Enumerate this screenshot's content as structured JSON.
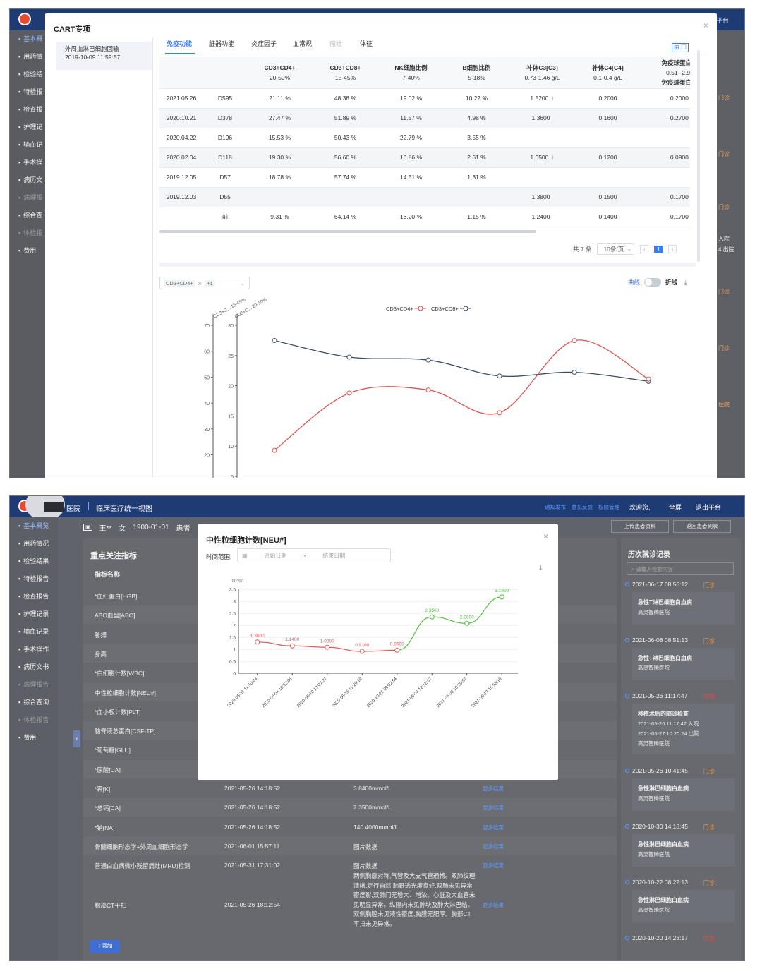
{
  "s1": {
    "topbar": {
      "right": "出平台"
    },
    "sidebar": [
      {
        "label": "基本概"
      },
      {
        "label": "用药情"
      },
      {
        "label": "检验结"
      },
      {
        "label": "特检报"
      },
      {
        "label": "检查报"
      },
      {
        "label": "护理记"
      },
      {
        "label": "输血记"
      },
      {
        "label": "手术操"
      },
      {
        "label": "病历文"
      },
      {
        "label": "病理报"
      },
      {
        "label": "综合查"
      },
      {
        "label": "体检报"
      },
      {
        "label": "费用"
      }
    ],
    "modal": {
      "title": "CART专项",
      "record_name": "外周血淋巴细胞回输",
      "record_time": "2019-10-09 11:59:57",
      "tabs": [
        "免疫功能",
        "脏器功能",
        "炎症因子",
        "血常规",
        "瘤灶",
        "体征"
      ],
      "columns": [
        {
          "name": "",
          "range": ""
        },
        {
          "name": "",
          "range": ""
        },
        {
          "name": "CD3+CD4+",
          "range": "20-50%"
        },
        {
          "name": "CD3+CD8+",
          "range": "15-45%"
        },
        {
          "name": "NK细胞比例",
          "range": "7-40%"
        },
        {
          "name": "B细胞比例",
          "range": "5-18%"
        },
        {
          "name": "补体C3[C3]",
          "range": "0.73-1.46 g/L"
        },
        {
          "name": "补体C4[C4]",
          "range": "0.1-0.4 g/L"
        },
        {
          "name": "免疫球蛋白IgA[",
          "range": "0.51--2.97 g"
        }
      ],
      "header_extra": "免疫球蛋白IgA[",
      "rows": [
        {
          "date": "2021.05.26",
          "day": "D595",
          "cd4": "21.11 %",
          "cd8": "48.38 %",
          "nk": "19.02 %",
          "b": "10.22 %",
          "c3": "1.5200",
          "c3_flag": "↑",
          "c4": "0.2000",
          "iga": "0.2000",
          "iga_flag": "↓"
        },
        {
          "date": "2020.10.21",
          "day": "D378",
          "cd4": "27.47 %",
          "cd8": "51.89 %",
          "nk": "11.57 %",
          "b": "4.98 %",
          "c3": "1.3600",
          "c3_flag": "",
          "c4": "0.1600",
          "iga": "0.2700",
          "iga_flag": "↓"
        },
        {
          "date": "2020.04.22",
          "day": "D196",
          "cd4": "15.53 %",
          "cd8": "50.43 %",
          "nk": "22.79 %",
          "b": "3.55 %",
          "c3": "",
          "c3_flag": "",
          "c4": "",
          "iga": "",
          "iga_flag": ""
        },
        {
          "date": "2020.02.04",
          "day": "D118",
          "cd4": "19.30 %",
          "cd8": "56.60 %",
          "nk": "16.86 %",
          "b": "2.61 %",
          "c3": "1.6500",
          "c3_flag": "↑",
          "c4": "0.1200",
          "iga": "0.0900",
          "iga_flag": "↓"
        },
        {
          "date": "2019.12.05",
          "day": "D57",
          "cd4": "18.78 %",
          "cd8": "57.74 %",
          "nk": "14.51 %",
          "b": "1.31 %",
          "c3": "",
          "c3_flag": "",
          "c4": "",
          "iga": "",
          "iga_flag": ""
        },
        {
          "date": "2019.12.03",
          "day": "D55",
          "cd4": "",
          "cd8": "",
          "nk": "",
          "b": "",
          "c3": "1.3800",
          "c3_flag": "",
          "c4": "0.1500",
          "iga": "0.1700",
          "iga_flag": "↓"
        },
        {
          "date": "",
          "day": "前",
          "cd4": "9.31 %",
          "cd8": "64.14 %",
          "nk": "18.20 %",
          "b": "1.15 %",
          "c3": "1.2400",
          "c3_flag": "",
          "c4": "0.1400",
          "iga": "0.1700",
          "iga_flag": "↓"
        }
      ],
      "pagination": {
        "total": "共 7 条",
        "page_size": "10条/页",
        "current": "1"
      },
      "chart_select": {
        "value": "CD3+CD4+",
        "extra": "+1"
      },
      "toggle_left": "曲线",
      "toggle_right": "折线",
      "right_edge": [
        "门诊",
        "门诊",
        "门诊",
        "入院",
        "4 出院",
        "门诊",
        "门诊",
        "住院"
      ]
    },
    "chart_data": {
      "type": "line",
      "legend": [
        "CD3+CD4+",
        "CD3+CD8+"
      ],
      "y_left_label": "CD3+C... 15-45%",
      "y_right_label": "CD3+C... 20-50%",
      "y_outer_ticks": [
        "70",
        "60",
        "50",
        "40",
        "30",
        "20",
        "10"
      ],
      "y_inner_ticks": [
        "30",
        "25",
        "20",
        "15",
        "10",
        "5"
      ],
      "series": [
        {
          "name": "CD3+CD4+",
          "color": "#d9534f",
          "values": [
            9.31,
            18.78,
            19.3,
            15.53,
            27.47,
            21.11
          ]
        },
        {
          "name": "CD3+CD8+",
          "color": "#3c4b64",
          "values": [
            64.14,
            57.74,
            56.6,
            50.43,
            51.89,
            48.38
          ]
        }
      ]
    }
  },
  "s2": {
    "topbar": {
      "hospital": "医院",
      "system": "临床医疗统一视图",
      "links": [
        "通知发布",
        "意见反馈",
        "权限管理"
      ],
      "welcome": "欢迎您,",
      "fullscreen": "全屏",
      "exit": "退出平台"
    },
    "patient": {
      "name": "王**",
      "sex": "女",
      "birth": "1900-01-01",
      "label": "患者"
    },
    "actions": {
      "upload": "上传患者资料",
      "back": "返回患者列表"
    },
    "sidebar": [
      {
        "label": "基本概览"
      },
      {
        "label": "用药情况"
      },
      {
        "label": "检验结果"
      },
      {
        "label": "特检报告"
      },
      {
        "label": "检查报告"
      },
      {
        "label": "护理记录"
      },
      {
        "label": "输血记录"
      },
      {
        "label": "手术操作"
      },
      {
        "label": "病历文书"
      },
      {
        "label": "病理报告"
      },
      {
        "label": "综合查询"
      },
      {
        "label": "体检报告"
      },
      {
        "label": "费用"
      }
    ],
    "focus": {
      "title": "重点关注指标",
      "col_name": "指标名称",
      "items": [
        {
          "name": "*血红蛋白[HGB]",
          "time": "",
          "value": "",
          "more": ""
        },
        {
          "name": "ABO血型[ABO]",
          "time": "",
          "value": "",
          "more": ""
        },
        {
          "name": "脉搏",
          "time": "",
          "value": "",
          "more": ""
        },
        {
          "name": "身高",
          "time": "",
          "value": "",
          "more": ""
        },
        {
          "name": "*白细胞计数[WBC]",
          "time": "",
          "value": "",
          "more": ""
        },
        {
          "name": "中性粒细胞计数[NEU#]",
          "time": "",
          "value": "",
          "more": ""
        },
        {
          "name": "*血小板计数[PLT]",
          "time": "",
          "value": "",
          "more": ""
        },
        {
          "name": "脑脊液总蛋白[CSF-TP]",
          "time": "",
          "value": "",
          "more": ""
        },
        {
          "name": "*葡萄糖[GLU]",
          "time": "",
          "value": "",
          "more": ""
        },
        {
          "name": "*尿酸[UA]",
          "time": "",
          "value": "",
          "more": ""
        },
        {
          "name": "*钾[K]",
          "time": "2021-05-26 14:18:52",
          "value": "3.8400mmol/L",
          "more": "更多结果"
        },
        {
          "name": "*总钙[CA]",
          "time": "2021-05-26 14:18:52",
          "value": "2.3500mmol/L",
          "more": "更多结果"
        },
        {
          "name": "*钠[NA]",
          "time": "2021-05-26 14:18:52",
          "value": "140.4000mmol/L",
          "more": "更多结果"
        },
        {
          "name": "骨髓细胞形态学+外周血细胞形态学",
          "time": "2021-06-01 15:57:11",
          "value": "图片数据",
          "more": "更多结果"
        },
        {
          "name": "普通白血病微小残留病灶(MRD)检测",
          "time": "2021-05-31 17:31:02",
          "value": "图片数据",
          "more": "更多结果"
        }
      ],
      "ct": {
        "name": "胸部CT平扫",
        "time": "2021-05-26 18:12:54",
        "value": "两侧胸廓对称,气管及大支气管通畅。双肺纹理清晰,走行自然,肺野透光度良好,双肺未见异常密度影,双肺门无增大、增浓。心脏及大血管未见明显异常。纵隔内未见肿块及肿大淋巴结。双侧胸腔未见液性密度,胸膜无肥厚。胸部CT平扫未见异常。",
        "more": "更多结果"
      },
      "add": "+添加"
    },
    "history": {
      "title": "历次就诊记录",
      "search_placeholder": "请输入检索内容",
      "records": [
        {
          "time": "2021-06-17 08:56:12",
          "type": "门诊",
          "red": false,
          "diag": "急性T淋巴细胞白血病",
          "hosp": "高灵智腾医院"
        },
        {
          "time": "2021-06-08 08:51:13",
          "type": "门诊",
          "red": false,
          "diag": "急性T淋巴细胞白血病",
          "hosp": "高灵智腾医院"
        },
        {
          "time": "2021-05-26 11:17:47",
          "type": "住院",
          "red": true,
          "diag": "移植术后的随诊检查",
          "hosp": "高灵智腾医院",
          "in": "2021-05-26 11:17:47 入院",
          "out": "2021-05-27 10:20:24 出院"
        },
        {
          "time": "2021-05-26 10:41:45",
          "type": "门诊",
          "red": false,
          "diag": "急性淋巴细胞白血病",
          "hosp": "高灵智腾医院"
        },
        {
          "time": "2020-10-30 14:18:45",
          "type": "门诊",
          "red": false,
          "diag": "急性淋巴细胞白血病",
          "hosp": "高灵智腾医院"
        },
        {
          "time": "2020-10-22 08:22:13",
          "type": "门诊",
          "red": false,
          "diag": "急性淋巴细胞白血病",
          "hosp": "高灵智腾医院"
        },
        {
          "time": "2020-10-20 14:23:17",
          "type": "住院",
          "red": true,
          "diag": "",
          "hosp": ""
        }
      ]
    },
    "modal": {
      "title": "中性粒细胞计数[NEU#]",
      "range_label": "时间范围:",
      "start_placeholder": "开始日期",
      "end_placeholder": "结束日期",
      "dash": "-"
    },
    "chart_data": {
      "type": "line",
      "unit": "10^9/L",
      "ylim": [
        0,
        3.5
      ],
      "y_ticks": [
        "3.5",
        "3",
        "2.5",
        "2",
        "1.5",
        "1",
        "0.5",
        "0"
      ],
      "x": [
        "2020-05-31 11:50:24",
        "2020-06-04 10:52:05",
        "2020-06-10 12:07:37",
        "2020-06-15 11:29:19",
        "2020-10-21 09:02:54",
        "2021-05-26 12:12:57",
        "2021-06-08 10:20:57",
        "2021-06-17 15:56:10"
      ],
      "values": [
        1.3,
        1.14,
        1.08,
        0.91,
        0.96,
        2.35,
        2.08,
        3.18
      ],
      "labels": [
        "1.3000",
        "1.1400",
        "1.0800",
        "0.9100",
        "0.9600",
        "2.3500",
        "2.0800",
        "3.1800"
      ],
      "low_color": "#e05a5a",
      "high_color": "#4cbf3a"
    }
  }
}
